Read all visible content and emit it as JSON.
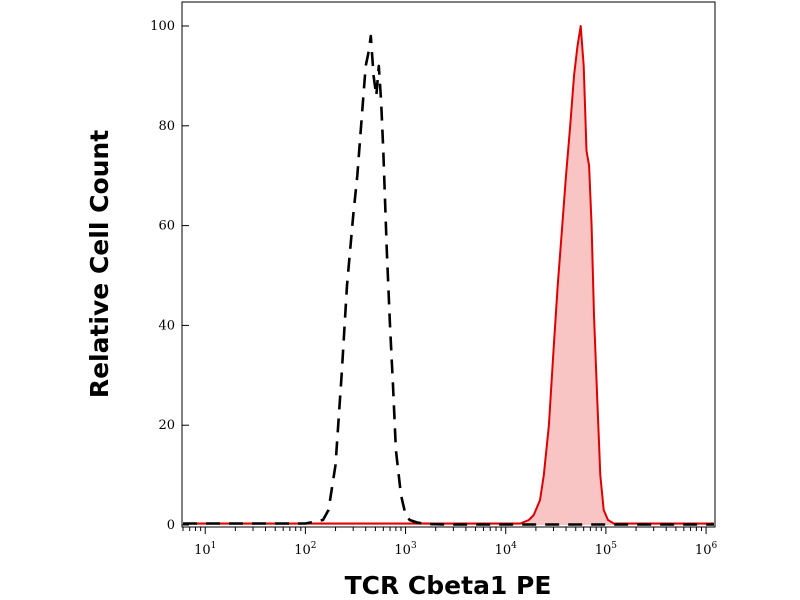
{
  "chart_data": {
    "type": "area",
    "xlabel": "TCR Cbeta1 PE",
    "ylabel": "Relative Cell Count",
    "xscale": "log",
    "xlim": [
      6,
      1200000
    ],
    "ylim": [
      0,
      100
    ],
    "grid": false,
    "legend": "none",
    "x_ticks": [
      {
        "base": "10",
        "exp": "1",
        "value": 10
      },
      {
        "base": "10",
        "exp": "2",
        "value": 100
      },
      {
        "base": "10",
        "exp": "3",
        "value": 1000
      },
      {
        "base": "10",
        "exp": "4",
        "value": 10000
      },
      {
        "base": "10",
        "exp": "5",
        "value": 100000
      },
      {
        "base": "10",
        "exp": "6",
        "value": 1000000
      }
    ],
    "y_ticks": [
      {
        "label": "0",
        "value": 0
      },
      {
        "label": "20",
        "value": 20
      },
      {
        "label": "40",
        "value": 40
      },
      {
        "label": "60",
        "value": 60
      },
      {
        "label": "80",
        "value": 80
      },
      {
        "label": "100",
        "value": 100
      }
    ],
    "series": [
      {
        "style": "dashed",
        "stroke": "#000000",
        "fill": "none",
        "x": [
          6,
          100,
          150,
          170,
          200,
          230,
          260,
          300,
          330,
          360,
          400,
          430,
          450,
          480,
          510,
          540,
          570,
          600,
          650,
          700,
          750,
          800,
          900,
          1000,
          1100,
          1300,
          1600,
          2500,
          1200000
        ],
        "y": [
          0.3,
          0.3,
          1,
          3,
          12,
          30,
          48,
          62,
          70,
          80,
          92,
          95,
          98,
          90,
          86,
          92,
          85,
          75,
          55,
          40,
          28,
          15,
          6,
          2,
          1,
          0.5,
          0.2,
          0.1,
          0.1
        ]
      },
      {
        "style": "solid",
        "stroke": "#e00000",
        "fill": "#f9c4c4",
        "x": [
          6,
          14000,
          17000,
          19000,
          22000,
          24000,
          27000,
          30000,
          33000,
          36000,
          40000,
          44000,
          48000,
          52000,
          56000,
          60000,
          64000,
          68000,
          72000,
          76000,
          82000,
          88000,
          95000,
          105000,
          120000,
          1200000
        ],
        "y": [
          0.3,
          0.3,
          1,
          2,
          5,
          10,
          20,
          35,
          48,
          58,
          70,
          80,
          90,
          96,
          100,
          92,
          75,
          72,
          60,
          42,
          25,
          10,
          3,
          1,
          0.3,
          0.3
        ]
      }
    ]
  }
}
